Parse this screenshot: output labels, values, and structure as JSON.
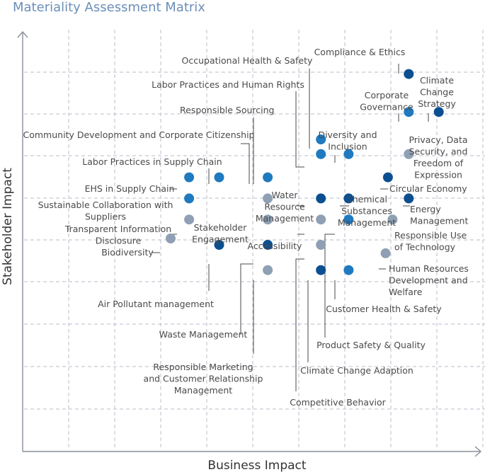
{
  "title": "Materiality Assessment Matrix",
  "colors": {
    "dark": "#0b4f91",
    "medium": "#1f7ac0",
    "gray": "#8fa0b4",
    "grid": "#b7bec8",
    "axis": "#8a8f99",
    "leader": "#4a4a4a"
  },
  "chart_data": {
    "type": "scatter",
    "xlabel": "Business Impact",
    "ylabel": "Stakeholder Impact",
    "xlim": [
      0,
      10
    ],
    "ylim": [
      0,
      10
    ],
    "grid": true,
    "points": [
      {
        "name": "Compliance & Ethics",
        "lines": [
          "Compliance & Ethics"
        ],
        "x": 8.35,
        "y": 8.95,
        "level": "dark"
      },
      {
        "name": "Climate Change Strategy",
        "lines": [
          "Climate",
          "Change",
          "Strategy"
        ],
        "x": 9.0,
        "y": 8.05,
        "level": "dark"
      },
      {
        "name": "Corporate Governance",
        "lines": [
          "Corporate",
          "Governance"
        ],
        "x": 8.35,
        "y": 8.05,
        "level": "medium"
      },
      {
        "name": "Occupational Health & Safety",
        "lines": [
          "Occupational Health & Safety"
        ],
        "x": 6.45,
        "y": 7.4,
        "level": "medium"
      },
      {
        "name": "Labor Practices and Human Rights",
        "lines": [
          "Labor Practices and Human Rights"
        ],
        "x": 6.45,
        "y": 7.05,
        "level": "medium"
      },
      {
        "name": "Diversity and Inclusion",
        "lines": [
          "Diversity and",
          "Inclusion"
        ],
        "x": 7.05,
        "y": 7.05,
        "level": "medium"
      },
      {
        "name": "Privacy, Data Security, and Freedom of Expression",
        "lines": [
          "Privacy, Data",
          "Security, and",
          "Freedom of",
          "Expression"
        ],
        "x": 8.35,
        "y": 7.05,
        "level": "gray"
      },
      {
        "name": "EHS in Supply Chain",
        "lines": [
          "EHS in Supply Chain"
        ],
        "x": 3.6,
        "y": 6.5,
        "level": "medium"
      },
      {
        "name": "Labor Practices in Supply Chain",
        "lines": [
          "Labor Practices in Supply Chain"
        ],
        "x": 4.25,
        "y": 6.5,
        "level": "medium"
      },
      {
        "name": "Community Development and Corporate Citizenship",
        "lines": [
          "Community Development and Corporate Citizenship"
        ],
        "x": 5.3,
        "y": 6.5,
        "level": "medium"
      },
      {
        "name": "Circular Economy",
        "lines": [
          "Circular Economy"
        ],
        "x": 7.9,
        "y": 6.5,
        "level": "dark"
      },
      {
        "name": "Sustainable Collaboration with Suppliers",
        "lines": [
          "Sustainable Collaboration with",
          "Suppliers"
        ],
        "x": 3.6,
        "y": 6.0,
        "level": "medium"
      },
      {
        "name": "Responsible Sourcing",
        "lines": [
          "Responsible Sourcing"
        ],
        "x": 5.3,
        "y": 6.0,
        "level": "gray"
      },
      {
        "name": "Water Resource Management",
        "lines": [
          "Water",
          "Resource",
          "Management"
        ],
        "x": 6.45,
        "y": 6.0,
        "level": "dark"
      },
      {
        "name": "Chemical Substances Management",
        "lines": [
          "Chemical",
          "Substances",
          "Management"
        ],
        "x": 7.05,
        "y": 6.0,
        "level": "dark"
      },
      {
        "name": "Energy Management",
        "lines": [
          "Energy",
          "Management"
        ],
        "x": 8.35,
        "y": 6.0,
        "level": "dark"
      },
      {
        "name": "Transparent Information Disclosure",
        "lines": [
          "Transparent Information",
          "Disclosure"
        ],
        "x": 3.6,
        "y": 5.5,
        "level": "gray"
      },
      {
        "name": "Stakeholder Engagement",
        "lines": [
          "Stakeholder",
          "Engagement"
        ],
        "x": 5.3,
        "y": 5.5,
        "level": "gray"
      },
      {
        "name": "Accessibility",
        "lines": [
          "Accessibility"
        ],
        "x": 6.45,
        "y": 5.5,
        "level": "gray"
      },
      {
        "name": "Product Safety & Quality",
        "lines": [
          "Product Safety & Quality"
        ],
        "x": 7.05,
        "y": 5.5,
        "level": "medium"
      },
      {
        "name": "Responsible Use of Technology",
        "lines": [
          "Responsible Use",
          "of Technology"
        ],
        "x": 8.0,
        "y": 5.5,
        "level": "gray"
      },
      {
        "name": "Biodiversity",
        "lines": [
          "Biodiversity"
        ],
        "x": 3.2,
        "y": 5.05,
        "level": "gray"
      },
      {
        "name": "Air Pollutant management",
        "lines": [
          "Air Pollutant management"
        ],
        "x": 4.25,
        "y": 4.9,
        "level": "dark"
      },
      {
        "name": "Waste Management",
        "lines": [
          "Waste Management"
        ],
        "x": 5.3,
        "y": 4.9,
        "level": "dark"
      },
      {
        "name": "Competitive Behavior",
        "lines": [
          "Competitive Behavior"
        ],
        "x": 6.45,
        "y": 4.9,
        "level": "gray"
      },
      {
        "name": "Human Resources Development and Welfare",
        "lines": [
          "Human Resources",
          "Development and",
          "Welfare"
        ],
        "x": 7.85,
        "y": 4.7,
        "level": "gray"
      },
      {
        "name": "Responsible Marketing and Customer Relationship Management",
        "lines": [
          "Responsible Marketing",
          "and Customer Relationship",
          "Management"
        ],
        "x": 5.3,
        "y": 4.3,
        "level": "gray"
      },
      {
        "name": "Climate Change Adaption",
        "lines": [
          "Climate Change Adaption"
        ],
        "x": 6.45,
        "y": 4.3,
        "level": "dark"
      },
      {
        "name": "Customer Health & Safety",
        "lines": [
          "Customer Health & Safety"
        ],
        "x": 7.05,
        "y": 4.3,
        "level": "medium"
      }
    ]
  }
}
